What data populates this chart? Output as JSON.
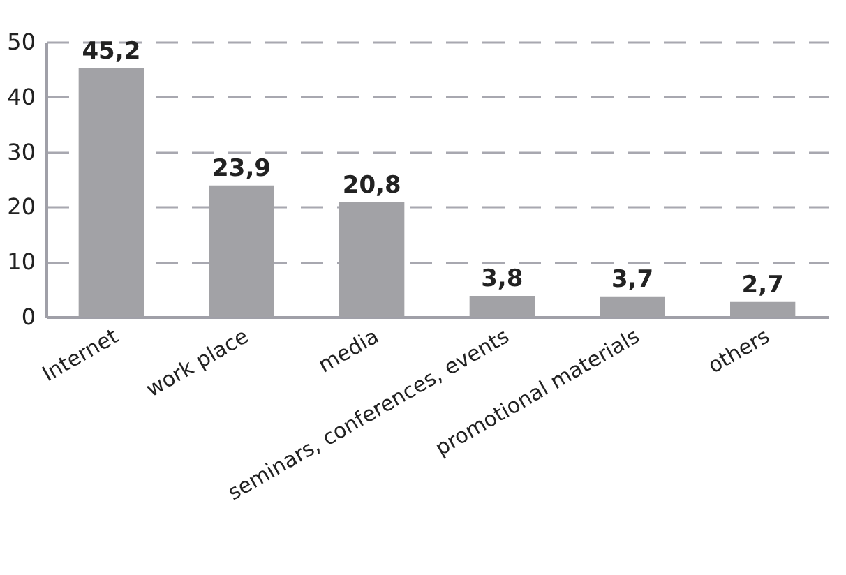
{
  "chart_data": {
    "type": "bar",
    "categories": [
      "Internet",
      "work place",
      "media",
      "seminars, conferences, events",
      "promotional materials",
      "others"
    ],
    "values": [
      45.2,
      23.9,
      20.8,
      3.8,
      3.7,
      2.7
    ],
    "value_labels": [
      "45,2",
      "23,9",
      "20,8",
      "3,8",
      "3,7",
      "2,7"
    ],
    "color": "#a2a2a6",
    "ylim": [
      0,
      50
    ],
    "yticks": [
      0,
      10,
      20,
      30,
      40,
      50
    ],
    "grid": "y"
  }
}
